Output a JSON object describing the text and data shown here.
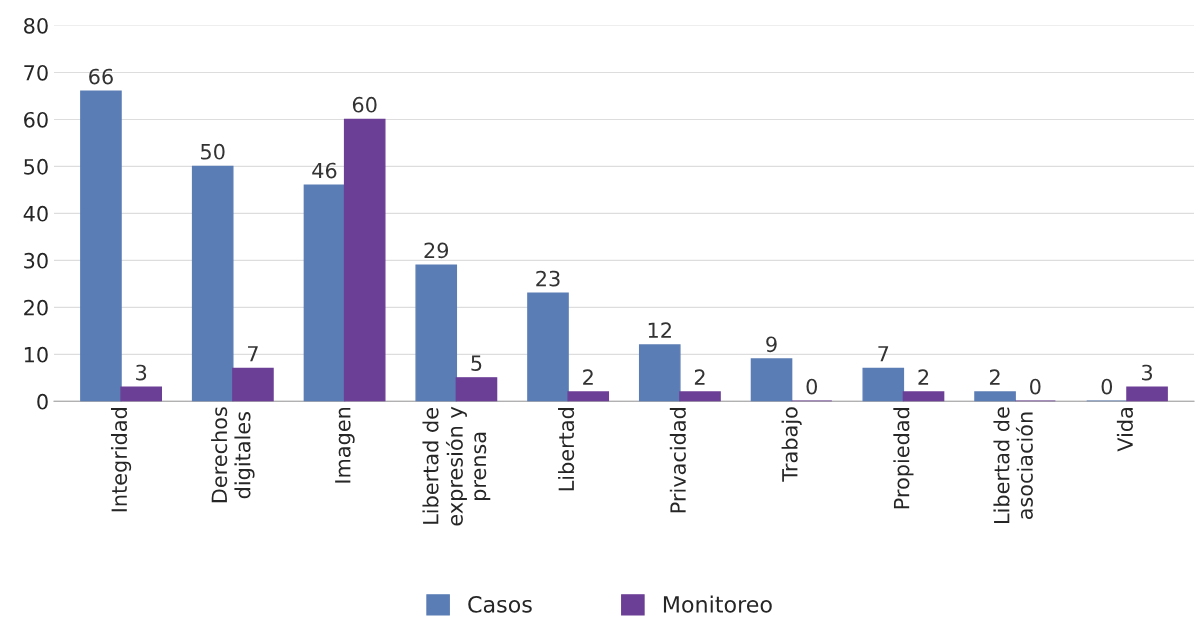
{
  "chart_data": {
    "type": "bar",
    "categories": [
      "Integridad",
      "Derechos\ndigitales",
      "Imagen",
      "Libertad de\nexpresión y\nprensa",
      "Libertad",
      "Privacidad",
      "Trabajo",
      "Propiedad",
      "Libertad de\nasociación",
      "Vida"
    ],
    "series": [
      {
        "name": "Casos",
        "color": "#5b7db5",
        "values": [
          66,
          50,
          46,
          29,
          23,
          12,
          9,
          7,
          2,
          0
        ]
      },
      {
        "name": "Monitoreo",
        "color": "#6c3f96",
        "values": [
          3,
          7,
          60,
          5,
          2,
          2,
          0,
          2,
          0,
          3
        ]
      }
    ],
    "ylim": [
      0,
      80
    ],
    "yticks": [
      0,
      10,
      20,
      30,
      40,
      50,
      60,
      70,
      80
    ],
    "grid": "y",
    "legend": "bottom",
    "data_labels": true
  }
}
